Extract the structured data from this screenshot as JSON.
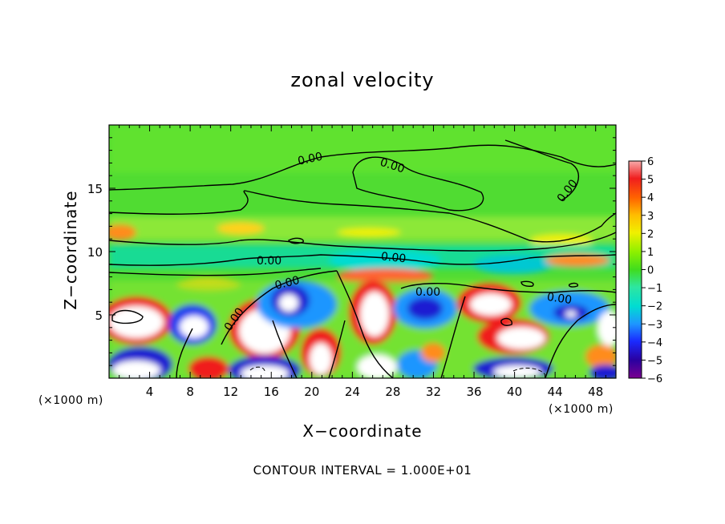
{
  "chart_data": {
    "type": "heatmap",
    "title": "zonal velocity",
    "xlabel": "X−coordinate",
    "ylabel": "Z−coordinate",
    "x_unit_left": "(×1000 m)",
    "x_unit_right": "(×1000 m)",
    "footer": "CONTOUR INTERVAL = 1.000E+01",
    "xlim": [
      0,
      50
    ],
    "ylim": [
      0,
      20
    ],
    "x_ticks": [
      4,
      8,
      12,
      16,
      20,
      24,
      28,
      32,
      36,
      40,
      44,
      48
    ],
    "y_ticks": [
      5,
      10,
      15
    ],
    "colorbar": {
      "min": -6,
      "max": 6,
      "ticks": [
        "6",
        "5",
        "4",
        "3",
        "2",
        "1",
        "0",
        "−1",
        "−2",
        "−3",
        "−4",
        "−5",
        "−6"
      ]
    },
    "contour_labels": [
      "0.00",
      "0.00",
      "0.00",
      "0.00",
      "0.00",
      "0.00",
      "0.00",
      "0.00",
      "0.00"
    ],
    "colors": {
      "background_field": "#50dc32",
      "strong_positive": "#ffffff",
      "strong_negative": "#ffffff"
    }
  }
}
